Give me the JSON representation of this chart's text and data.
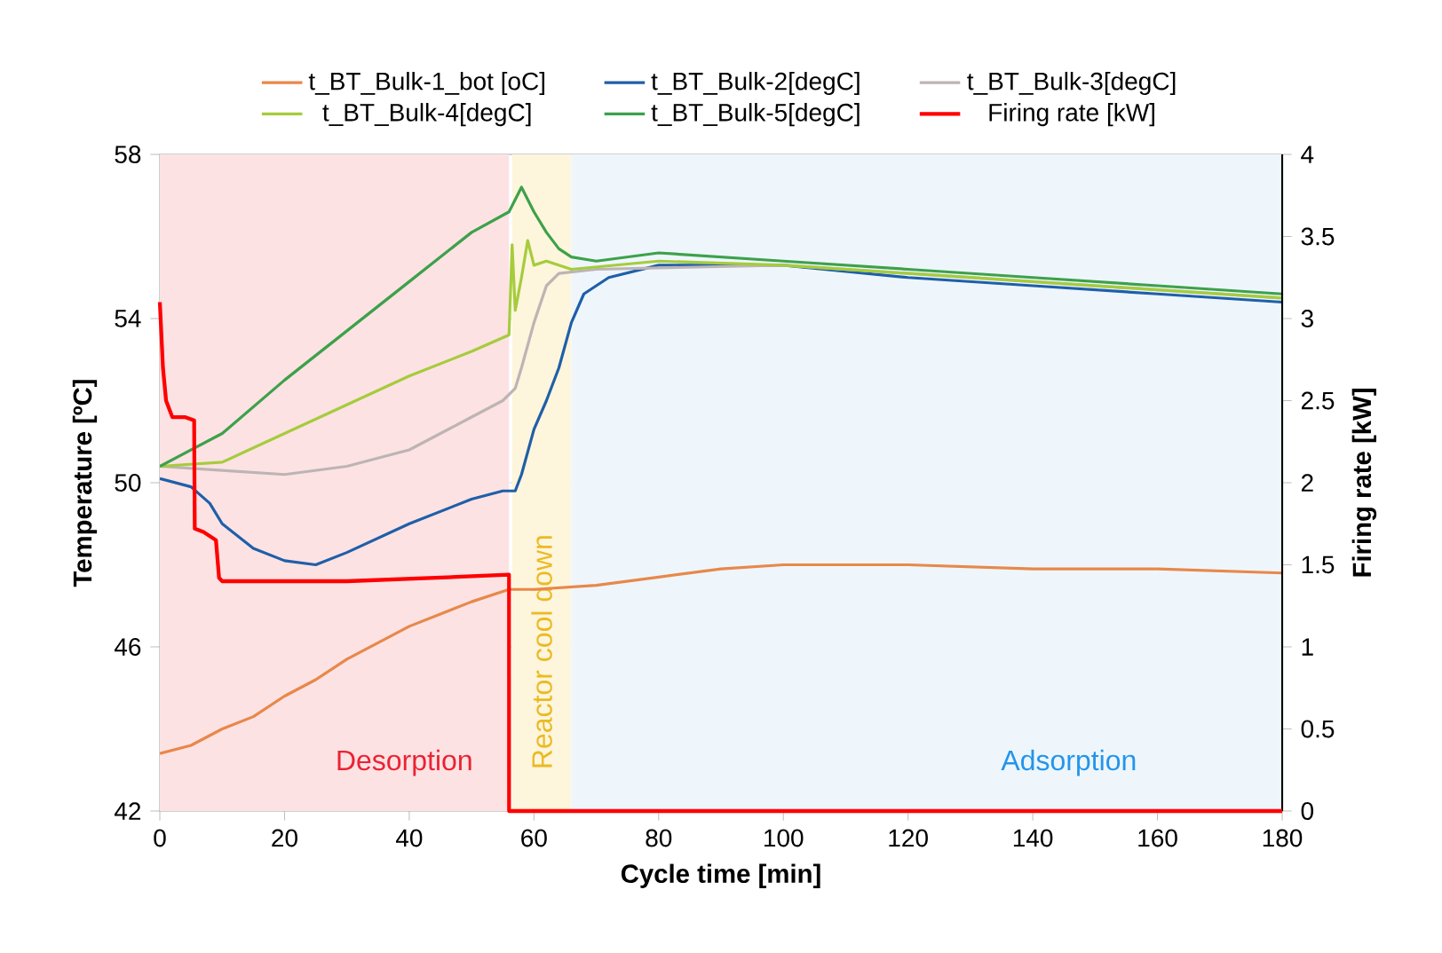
{
  "chart_data": {
    "type": "line",
    "xlabel": "Cycle time [min]",
    "ylabel": "Temperature [ºC]",
    "y2label": "Firing rate [kW]",
    "xlim": [
      0,
      180
    ],
    "xticks": [
      0,
      20,
      40,
      60,
      80,
      100,
      120,
      140,
      160,
      180
    ],
    "ylim": [
      42,
      58
    ],
    "yticks": [
      42,
      46,
      50,
      54,
      58
    ],
    "y2lim": [
      0,
      4
    ],
    "y2ticks": [
      0,
      0.5,
      1,
      1.5,
      2,
      2.5,
      3,
      3.5,
      4
    ],
    "grid": true,
    "legend": "top",
    "bands": [
      {
        "axis": "x",
        "from": 0,
        "to": 56,
        "label": "Desorption",
        "color": "#fde2e4"
      },
      {
        "axis": "x",
        "from": 56.5,
        "to": 66,
        "label": "Reactor cool down",
        "color": "#fdf5dc"
      },
      {
        "axis": "x",
        "from": 66,
        "to": 180,
        "label": "Adsorption",
        "color": "#eef6fc"
      }
    ],
    "series": [
      {
        "name": "t_BT_Bulk-1_bot [oC]",
        "color": "#e8884a",
        "x": [
          0,
          5,
          10,
          15,
          20,
          25,
          30,
          35,
          40,
          45,
          50,
          56,
          60,
          70,
          80,
          90,
          100,
          110,
          120,
          140,
          160,
          180
        ],
        "values": [
          43.4,
          43.6,
          44.0,
          44.3,
          44.8,
          45.2,
          45.7,
          46.1,
          46.5,
          46.8,
          47.1,
          47.4,
          47.4,
          47.5,
          47.7,
          47.9,
          48.0,
          48.0,
          48.0,
          47.9,
          47.9,
          47.8
        ]
      },
      {
        "name": "t_BT_Bulk-2[degC]",
        "color": "#1f5fa8",
        "x": [
          0,
          5,
          8,
          10,
          15,
          20,
          25,
          30,
          40,
          50,
          55,
          57,
          58,
          60,
          62,
          64,
          66,
          68,
          72,
          80,
          100,
          120,
          140,
          160,
          180
        ],
        "values": [
          50.1,
          49.9,
          49.5,
          49.0,
          48.4,
          48.1,
          48.0,
          48.3,
          49.0,
          49.6,
          49.8,
          49.8,
          50.2,
          51.3,
          52.0,
          52.8,
          53.9,
          54.6,
          55.0,
          55.3,
          55.3,
          55.0,
          54.8,
          54.6,
          54.4
        ]
      },
      {
        "name": "t_BT_Bulk-3[degC]",
        "color": "#bdb4b4",
        "x": [
          0,
          10,
          20,
          30,
          40,
          50,
          55,
          57,
          58,
          60,
          62,
          64,
          70,
          100,
          140,
          180
        ],
        "values": [
          50.4,
          50.3,
          50.2,
          50.4,
          50.8,
          51.6,
          52.0,
          52.3,
          52.8,
          53.9,
          54.8,
          55.1,
          55.2,
          55.3,
          54.9,
          54.5
        ]
      },
      {
        "name": "t_BT_Bulk-4[degC]",
        "color": "#a5cc3c",
        "x": [
          0,
          10,
          20,
          30,
          40,
          50,
          56,
          56.5,
          57,
          58,
          59,
          60,
          62,
          66,
          80,
          100,
          140,
          180
        ],
        "values": [
          50.4,
          50.5,
          51.2,
          51.9,
          52.6,
          53.2,
          53.6,
          55.8,
          54.2,
          55.0,
          55.9,
          55.3,
          55.4,
          55.2,
          55.4,
          55.3,
          54.9,
          54.5
        ]
      },
      {
        "name": "t_BT_Bulk-5[degC]",
        "color": "#3da14a",
        "x": [
          0,
          10,
          20,
          30,
          40,
          50,
          56,
          58,
          60,
          62,
          64,
          66,
          70,
          80,
          100,
          120,
          140,
          160,
          180
        ],
        "values": [
          50.4,
          51.2,
          52.5,
          53.7,
          54.9,
          56.1,
          56.6,
          57.2,
          56.6,
          56.1,
          55.7,
          55.5,
          55.4,
          55.6,
          55.4,
          55.2,
          55.0,
          54.8,
          54.6
        ]
      },
      {
        "name": "Firing rate [kW]",
        "color": "#ff0000",
        "axis": "y2",
        "x": [
          0,
          0.5,
          1,
          2,
          4,
          5.5,
          5.6,
          7,
          9,
          9.5,
          10,
          30,
          50,
          56,
          56.01,
          180
        ],
        "values": [
          3.1,
          2.7,
          2.5,
          2.4,
          2.4,
          2.38,
          1.72,
          1.7,
          1.65,
          1.42,
          1.4,
          1.4,
          1.43,
          1.44,
          0,
          0
        ]
      }
    ]
  }
}
